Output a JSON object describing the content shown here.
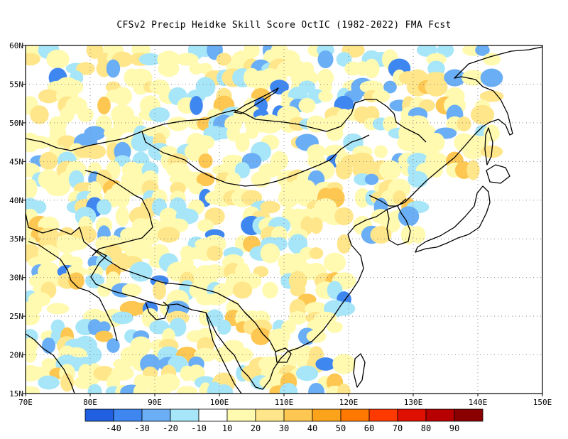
{
  "title": "CFSv2 Precip Heidke Skill Score OctIC (1982-2022) FMA Fcst",
  "map": {
    "lon_range": [
      70,
      150
    ],
    "lat_range": [
      15,
      60
    ],
    "lon_ticks": [
      "70E",
      "80E",
      "90E",
      "100E",
      "110E",
      "120E",
      "130E",
      "140E",
      "150E"
    ],
    "lat_ticks": [
      "60N",
      "55N",
      "50N",
      "45N",
      "40N",
      "35N",
      "30N",
      "25N",
      "20N",
      "15N"
    ],
    "grid": true,
    "icons": [
      "coastline-outline",
      "border-outline"
    ]
  },
  "colorbar": {
    "colors": [
      "#1f5fe0",
      "#3e86f0",
      "#6aaef5",
      "#a7e6f8",
      "#ffffff",
      "#fffab0",
      "#ffe68a",
      "#fdc752",
      "#fba31a",
      "#ff7800",
      "#ff3a00",
      "#e01000",
      "#b80000",
      "#8a0000"
    ],
    "labels": [
      "-40",
      "-30",
      "-20",
      "-10",
      "10",
      "20",
      "30",
      "40",
      "50",
      "60",
      "70",
      "80",
      "90"
    ]
  },
  "shading": {
    "negative_colors": [
      "#a7e6f8",
      "#6aaef5",
      "#3e86f0"
    ],
    "positive_colors": [
      "#fffab0",
      "#ffe68a",
      "#fdc752"
    ]
  }
}
